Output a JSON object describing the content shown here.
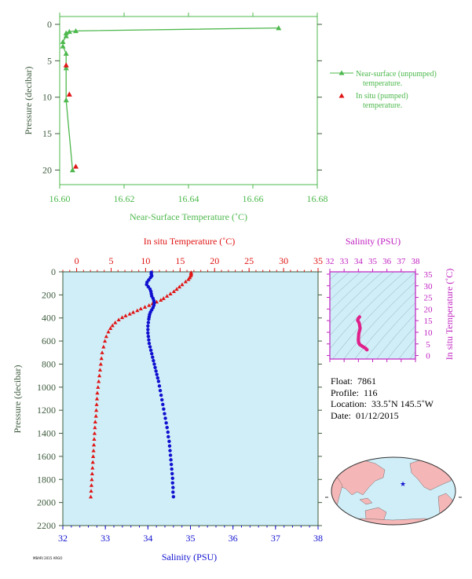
{
  "colors": {
    "near_surface": "#4db84d",
    "in_situ_temp": "#e01515",
    "salinity": "#1010d0",
    "salinity_axis": "#c020c0",
    "plot_bg": "#d0eef8",
    "axis_text": "#3d5a3d"
  },
  "chart_data": [
    {
      "type": "line",
      "xlabel": "Near-Surface Temperature (˚C)",
      "ylabel": "Pressure (decibar)",
      "xlim": [
        16.6,
        16.68
      ],
      "ylim": [
        0,
        22
      ],
      "y_inverted": true,
      "x_ticks": [
        "16.60",
        "16.62",
        "16.64",
        "16.66",
        "16.68"
      ],
      "y_ticks": [
        "0",
        "5",
        "10",
        "15",
        "20"
      ],
      "legend": [
        {
          "line1": "Near-surface (unpumped)",
          "line2": "temperature."
        },
        {
          "line1": "In situ (pumped)",
          "line2": "temperature."
        }
      ],
      "series": [
        {
          "name": "Near-surface (unpumped) temperature.",
          "marker": "triangle-line",
          "points": [
            [
              16.668,
              0.5
            ],
            [
              16.605,
              0.9
            ],
            [
              16.603,
              1.0
            ],
            [
              16.602,
              1.2
            ],
            [
              16.602,
              1.6
            ],
            [
              16.601,
              2.4
            ],
            [
              16.601,
              3.0
            ],
            [
              16.602,
              4.0
            ],
            [
              16.602,
              6.0
            ],
            [
              16.602,
              10.4
            ],
            [
              16.604,
              20.0
            ]
          ]
        },
        {
          "name": "In situ (pumped) temperature.",
          "marker": "triangle",
          "points": [
            [
              16.602,
              5.6
            ],
            [
              16.603,
              9.6
            ],
            [
              16.605,
              19.5
            ]
          ]
        }
      ]
    },
    {
      "type": "scatter",
      "top_xlabel": "In situ Temperature (˚C)",
      "bottom_xlabel": "Salinity (PSU)",
      "ylabel": "Pressure (decibar)",
      "top_xlim": [
        -2,
        35
      ],
      "bottom_xlim": [
        32,
        38
      ],
      "ylim": [
        0,
        2200
      ],
      "y_inverted": true,
      "top_ticks": [
        "0",
        "5",
        "10",
        "15",
        "20",
        "25",
        "30",
        "35"
      ],
      "bottom_ticks": [
        "32",
        "33",
        "34",
        "35",
        "36",
        "37",
        "38"
      ],
      "y_ticks": [
        "0",
        "200",
        "400",
        "600",
        "800",
        "1000",
        "1200",
        "1400",
        "1600",
        "1800",
        "2000",
        "2200"
      ],
      "temperature_profile": [
        [
          16.6,
          5
        ],
        [
          16.6,
          15
        ],
        [
          16.6,
          25
        ],
        [
          16.5,
          35
        ],
        [
          16.4,
          50
        ],
        [
          16.2,
          65
        ],
        [
          15.8,
          85
        ],
        [
          15.3,
          110
        ],
        [
          14.9,
          130
        ],
        [
          14.5,
          150
        ],
        [
          14.1,
          170
        ],
        [
          13.6,
          190
        ],
        [
          13.1,
          210
        ],
        [
          12.6,
          230
        ],
        [
          12.2,
          245
        ],
        [
          11.6,
          260
        ],
        [
          11.0,
          275
        ],
        [
          10.5,
          290
        ],
        [
          9.9,
          305
        ],
        [
          9.3,
          320
        ],
        [
          8.8,
          335
        ],
        [
          8.2,
          350
        ],
        [
          7.7,
          365
        ],
        [
          7.1,
          380
        ],
        [
          6.6,
          395
        ],
        [
          6.1,
          415
        ],
        [
          5.6,
          440
        ],
        [
          5.2,
          465
        ],
        [
          4.9,
          490
        ],
        [
          4.6,
          520
        ],
        [
          4.3,
          560
        ],
        [
          4.1,
          600
        ],
        [
          3.9,
          650
        ],
        [
          3.7,
          700
        ],
        [
          3.6,
          750
        ],
        [
          3.5,
          800
        ],
        [
          3.4,
          850
        ],
        [
          3.3,
          900
        ],
        [
          3.2,
          950
        ],
        [
          3.1,
          1000
        ],
        [
          3.0,
          1050
        ],
        [
          2.95,
          1100
        ],
        [
          2.9,
          1150
        ],
        [
          2.85,
          1200
        ],
        [
          2.8,
          1250
        ],
        [
          2.7,
          1300
        ],
        [
          2.65,
          1350
        ],
        [
          2.6,
          1400
        ],
        [
          2.55,
          1450
        ],
        [
          2.5,
          1500
        ],
        [
          2.45,
          1550
        ],
        [
          2.4,
          1600
        ],
        [
          2.35,
          1650
        ],
        [
          2.3,
          1700
        ],
        [
          2.25,
          1750
        ],
        [
          2.2,
          1800
        ],
        [
          2.15,
          1850
        ],
        [
          2.1,
          1900
        ],
        [
          2.05,
          1950
        ]
      ],
      "salinity_profile": [
        [
          34.08,
          5
        ],
        [
          34.08,
          20
        ],
        [
          34.09,
          35
        ],
        [
          34.06,
          50
        ],
        [
          34.02,
          70
        ],
        [
          33.98,
          90
        ],
        [
          33.97,
          110
        ],
        [
          34.01,
          130
        ],
        [
          34.05,
          150
        ],
        [
          34.07,
          170
        ],
        [
          34.08,
          190
        ],
        [
          34.09,
          210
        ],
        [
          34.12,
          230
        ],
        [
          34.14,
          250
        ],
        [
          34.15,
          270
        ],
        [
          34.14,
          290
        ],
        [
          34.12,
          310
        ],
        [
          34.09,
          330
        ],
        [
          34.06,
          350
        ],
        [
          34.04,
          370
        ],
        [
          34.03,
          390
        ],
        [
          34.02,
          410
        ],
        [
          34.01,
          440
        ],
        [
          34.0,
          470
        ],
        [
          34.0,
          500
        ],
        [
          34.0,
          530
        ],
        [
          34.01,
          560
        ],
        [
          34.02,
          590
        ],
        [
          34.03,
          620
        ],
        [
          34.05,
          650
        ],
        [
          34.07,
          680
        ],
        [
          34.09,
          710
        ],
        [
          34.11,
          740
        ],
        [
          34.13,
          770
        ],
        [
          34.15,
          800
        ],
        [
          34.17,
          830
        ],
        [
          34.19,
          860
        ],
        [
          34.21,
          890
        ],
        [
          34.23,
          920
        ],
        [
          34.25,
          950
        ],
        [
          34.27,
          990
        ],
        [
          34.29,
          1030
        ],
        [
          34.31,
          1070
        ],
        [
          34.33,
          1110
        ],
        [
          34.35,
          1150
        ],
        [
          34.37,
          1190
        ],
        [
          34.39,
          1230
        ],
        [
          34.41,
          1270
        ],
        [
          34.43,
          1310
        ],
        [
          34.45,
          1350
        ],
        [
          34.47,
          1390
        ],
        [
          34.48,
          1430
        ],
        [
          34.5,
          1470
        ],
        [
          34.51,
          1510
        ],
        [
          34.52,
          1550
        ],
        [
          34.53,
          1590
        ],
        [
          34.54,
          1630
        ],
        [
          34.55,
          1670
        ],
        [
          34.56,
          1710
        ],
        [
          34.57,
          1750
        ],
        [
          34.58,
          1790
        ],
        [
          34.58,
          1830
        ],
        [
          34.59,
          1870
        ],
        [
          34.59,
          1910
        ],
        [
          34.6,
          1950
        ]
      ]
    },
    {
      "type": "scatter",
      "title": "Salinity (PSU)",
      "ylabel": "In situ Temperature (˚C)",
      "x_ticks": [
        "32",
        "33",
        "34",
        "35",
        "36",
        "37",
        "38"
      ],
      "y_ticks": [
        "0",
        "5",
        "10",
        "15",
        "20",
        "25",
        "30",
        "35"
      ],
      "xlim": [
        32,
        38
      ],
      "ylim": [
        -1.5,
        36
      ],
      "ts_points": [
        [
          34.08,
          16.6
        ],
        [
          34.0,
          16.0
        ],
        [
          33.95,
          15.2
        ],
        [
          34.0,
          14.6
        ],
        [
          34.05,
          14.0
        ],
        [
          34.08,
          13.2
        ],
        [
          34.1,
          12.5
        ],
        [
          34.12,
          11.8
        ],
        [
          34.1,
          11.0
        ],
        [
          34.06,
          10.2
        ],
        [
          34.03,
          9.5
        ],
        [
          34.02,
          8.8
        ],
        [
          34.01,
          8.0
        ],
        [
          34.0,
          7.2
        ],
        [
          34.0,
          6.5
        ],
        [
          34.02,
          5.8
        ],
        [
          34.05,
          5.2
        ],
        [
          34.1,
          4.7
        ],
        [
          34.2,
          4.3
        ],
        [
          34.3,
          3.9
        ],
        [
          34.4,
          3.5
        ],
        [
          34.5,
          3.1
        ],
        [
          34.55,
          2.8
        ],
        [
          34.6,
          2.5
        ]
      ]
    }
  ],
  "float_info": {
    "float_label": "Float:",
    "float_value": "7861",
    "profile_label": "Profile:",
    "profile_value": "116",
    "location_label": "Location:",
    "location_value": "33.5˚N  145.5˚W",
    "date_label": "Date:",
    "date_value": "01/12/2015"
  },
  "stamp": "MBARI 2015 ARGO"
}
